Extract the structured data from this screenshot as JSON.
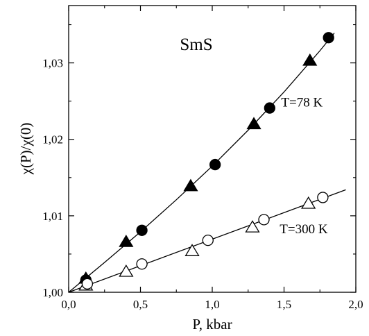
{
  "chart_data": {
    "type": "scatter",
    "title": "SmS",
    "xlabel": "P, kbar",
    "ylabel": "χ(P)/χ(0)",
    "xlim": [
      0.0,
      2.0
    ],
    "ylim": [
      1.0,
      1.0375
    ],
    "x_ticks": [
      {
        "value": 0.0,
        "label": "0,0"
      },
      {
        "value": 0.5,
        "label": "0,5"
      },
      {
        "value": 1.0,
        "label": "1,0"
      },
      {
        "value": 1.5,
        "label": "1,5"
      },
      {
        "value": 2.0,
        "label": "2,0"
      }
    ],
    "y_ticks": [
      {
        "value": 1.0,
        "label": "1,00"
      },
      {
        "value": 1.01,
        "label": "1,01"
      },
      {
        "value": 1.02,
        "label": "1,02"
      },
      {
        "value": 1.03,
        "label": "1,03"
      }
    ],
    "grid": false,
    "series": [
      {
        "name": "T=78 K",
        "marker": "filled-triangle",
        "x": [
          0.12,
          0.4,
          0.85,
          1.29,
          1.68
        ],
        "y": [
          1.0018,
          1.0066,
          1.0139,
          1.022,
          1.0303
        ]
      },
      {
        "name": "T=78 K",
        "marker": "filled-circle",
        "x": [
          0.12,
          0.51,
          1.02,
          1.4,
          1.81
        ],
        "y": [
          1.0016,
          1.0081,
          1.0167,
          1.0241,
          1.0333
        ]
      },
      {
        "name": "T=300 K",
        "marker": "open-triangle",
        "x": [
          0.12,
          0.4,
          0.86,
          1.28,
          1.67
        ],
        "y": [
          1.0009,
          1.0027,
          1.0054,
          1.0085,
          1.0116
        ]
      },
      {
        "name": "T=300 K",
        "marker": "open-circle",
        "x": [
          0.13,
          0.51,
          0.97,
          1.36,
          1.77
        ],
        "y": [
          1.0011,
          1.0037,
          1.0068,
          1.0095,
          1.0124
        ]
      }
    ],
    "fit_curves": [
      {
        "name": "T=78 K",
        "x": [
          0.0,
          0.25,
          0.5,
          0.75,
          1.0,
          1.25,
          1.5,
          1.75,
          1.85
        ],
        "y": [
          1.0,
          1.0039,
          1.0079,
          1.0121,
          1.0165,
          1.0212,
          1.0262,
          1.0316,
          1.0339
        ]
      },
      {
        "name": "T=300 K",
        "x": [
          0.0,
          1.93
        ],
        "y": [
          1.0,
          1.0134
        ]
      }
    ],
    "annotations": [
      {
        "text": "T=78 K",
        "x": 1.48,
        "y": 1.0243
      },
      {
        "text": "T=300 K",
        "x": 1.47,
        "y": 1.0077
      }
    ]
  }
}
